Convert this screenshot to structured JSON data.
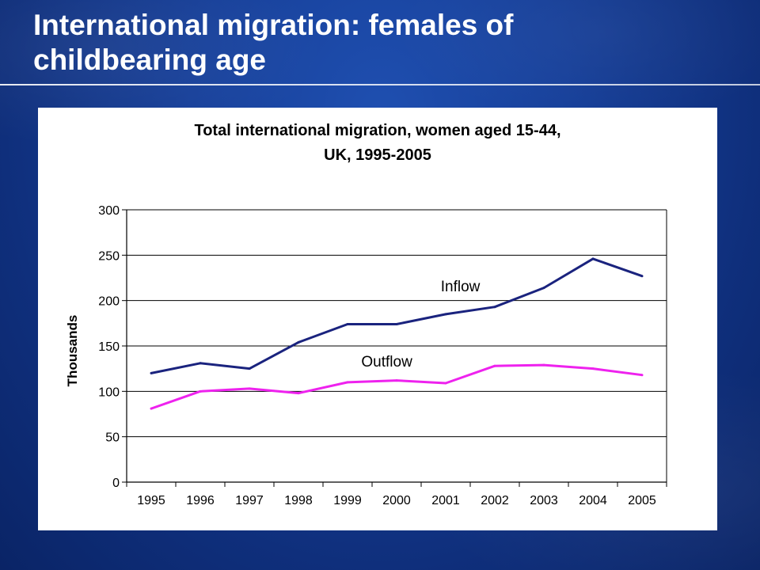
{
  "slide": {
    "title_line1": "International migration: females of",
    "title_line2": "childbearing age"
  },
  "chart_data": {
    "type": "line",
    "title_line1": "Total international migration, women aged 15-44,",
    "title_line2": "UK, 1995-2005",
    "xlabel": "",
    "ylabel": "Thousands",
    "categories": [
      "1995",
      "1996",
      "1997",
      "1998",
      "1999",
      "2000",
      "2001",
      "2002",
      "2003",
      "2004",
      "2005"
    ],
    "ylim": [
      0,
      300
    ],
    "yticks": [
      0,
      50,
      100,
      150,
      200,
      250,
      300
    ],
    "grid": "horizontal",
    "series": [
      {
        "name": "Inflow",
        "color": "#1a237e",
        "values": [
          120,
          131,
          125,
          154,
          174,
          174,
          185,
          193,
          214,
          246,
          227
        ]
      },
      {
        "name": "Outflow",
        "color": "#ee22ee",
        "values": [
          81,
          100,
          103,
          98,
          110,
          112,
          109,
          128,
          129,
          125,
          118
        ]
      }
    ]
  }
}
